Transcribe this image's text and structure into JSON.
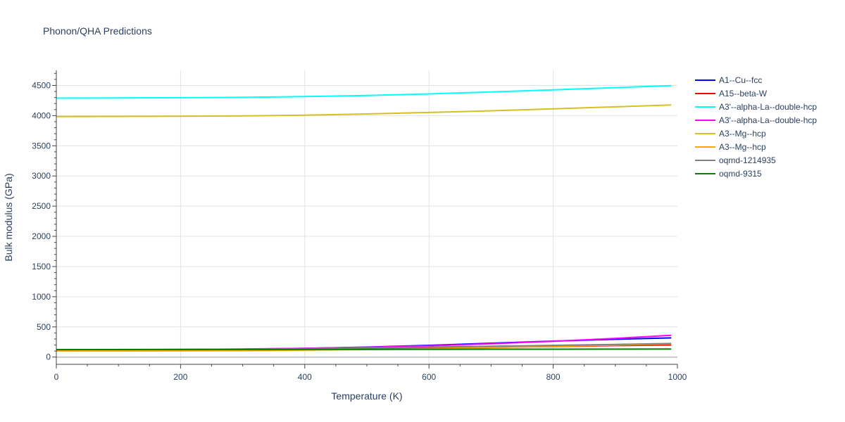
{
  "chart_data": {
    "type": "line",
    "title": "Phonon/QHA Predictions",
    "xlabel": "Temperature (K)",
    "ylabel": "Bulk modulus (GPa)",
    "xlim": [
      0,
      1000
    ],
    "ylim": [
      -120,
      4750
    ],
    "x_ticks": [
      0,
      200,
      400,
      600,
      800,
      1000
    ],
    "y_ticks": [
      0,
      500,
      1000,
      1500,
      2000,
      2500,
      3000,
      3500,
      4000,
      4500
    ],
    "grid": true,
    "legend_position": "right",
    "series": [
      {
        "name": "A1--Cu--fcc",
        "color": "#0000ff",
        "x": [
          0,
          100,
          200,
          300,
          400,
          500,
          600,
          700,
          800,
          900,
          990
        ],
        "y": [
          112,
          115,
          120,
          130,
          145,
          165,
          195,
          230,
          265,
          295,
          318
        ]
      },
      {
        "name": "A15--beta-W",
        "color": "#ff0000",
        "x": [
          0,
          100,
          200,
          300,
          400,
          500,
          600,
          700,
          800,
          900,
          990
        ],
        "y": [
          105,
          107,
          110,
          115,
          122,
          132,
          145,
          160,
          175,
          190,
          200
        ]
      },
      {
        "name": "A3'--alpha-La--double-hcp",
        "color": "#00ffff",
        "x": [
          0,
          100,
          200,
          300,
          400,
          500,
          600,
          700,
          800,
          900,
          990
        ],
        "y": [
          4290,
          4292,
          4297,
          4303,
          4315,
          4333,
          4360,
          4392,
          4427,
          4463,
          4497
        ]
      },
      {
        "name": "A3'--alpha-La--double-hcp",
        "color": "#ff00ff",
        "x": [
          0,
          100,
          200,
          300,
          400,
          500,
          600,
          700,
          800,
          900,
          990
        ],
        "y": [
          120,
          122,
          126,
          134,
          146,
          162,
          185,
          220,
          262,
          310,
          360
        ]
      },
      {
        "name": "A3--Mg--hcp",
        "color": "#d4c020",
        "x": [
          0,
          100,
          200,
          300,
          400,
          500,
          600,
          700,
          800,
          900,
          990
        ],
        "y": [
          3985,
          3987,
          3990,
          3995,
          4008,
          4028,
          4052,
          4080,
          4112,
          4145,
          4177
        ]
      },
      {
        "name": "A3--Mg--hcp",
        "color": "#ffa500",
        "x": [
          0,
          100,
          200,
          300,
          400,
          500,
          600,
          700,
          800,
          900,
          990
        ],
        "y": [
          100,
          101,
          103,
          107,
          115,
          125,
          140,
          158,
          178,
          198,
          218
        ]
      },
      {
        "name": "oqmd-1214935",
        "color": "#808080",
        "x": [
          0,
          100,
          200,
          300,
          400,
          500,
          600,
          700,
          800,
          900,
          990
        ],
        "y": [
          125,
          126,
          128,
          132,
          140,
          150,
          165,
          180,
          195,
          210,
          225
        ]
      },
      {
        "name": "oqmd-9315",
        "color": "#008000",
        "x": [
          0,
          100,
          200,
          300,
          400,
          500,
          600,
          700,
          800,
          900,
          990
        ],
        "y": [
          125,
          125,
          126,
          126,
          127,
          128,
          129,
          130,
          131,
          132,
          133
        ]
      }
    ]
  }
}
